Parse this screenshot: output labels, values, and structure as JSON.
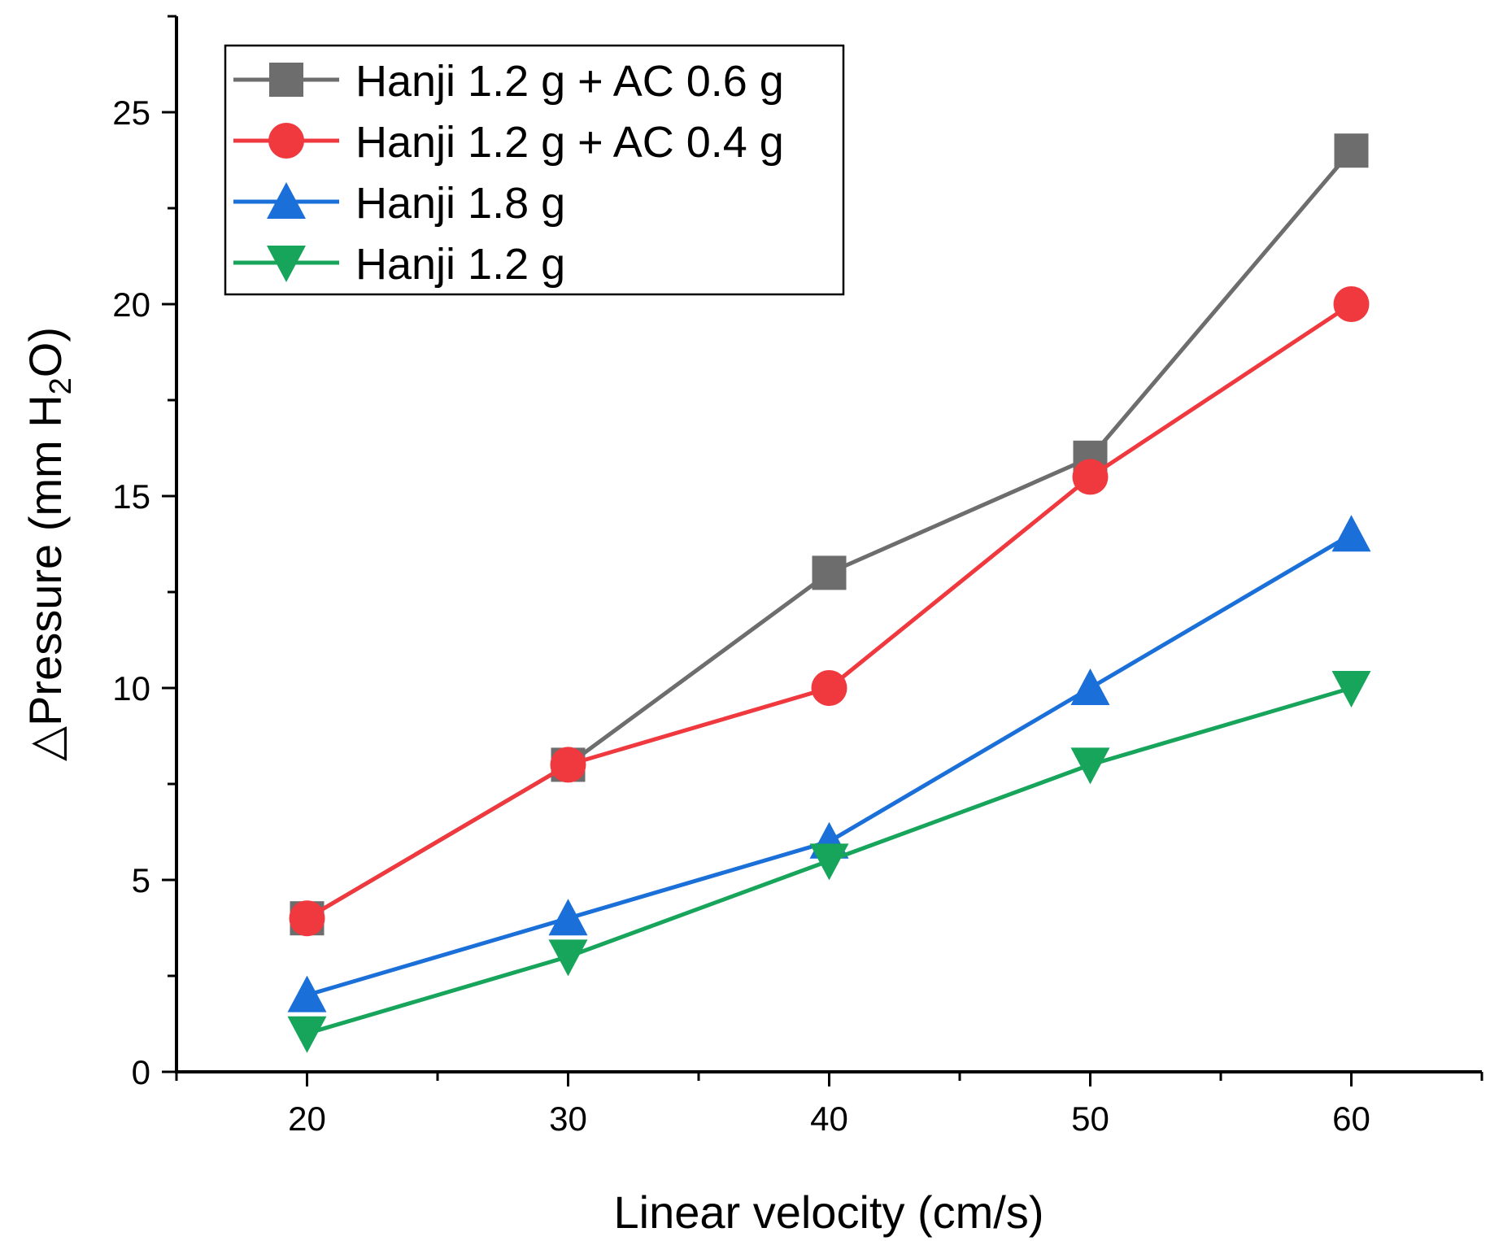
{
  "chart_data": {
    "type": "line",
    "title": "",
    "xlabel": "Linear velocity (cm/s)",
    "ylabel": {
      "prefix": "△Pressure (mm H",
      "subscript": "2",
      "suffix": "O)"
    },
    "xlim": [
      15,
      65
    ],
    "ylim": [
      0,
      27.5
    ],
    "xticks": [
      20,
      30,
      40,
      50,
      60
    ],
    "xtick_labels": [
      "20",
      "30",
      "40",
      "50",
      "60"
    ],
    "yticks": [
      0,
      5,
      10,
      15,
      20,
      25
    ],
    "ytick_labels": [
      "0",
      "5",
      "10",
      "15",
      "20",
      "25"
    ],
    "grid": false,
    "legend_position": "top-left",
    "x": [
      20,
      30,
      40,
      50,
      60
    ],
    "series": [
      {
        "name": "Hanji 1.2 g + AC 0.6 g",
        "color": "#6d6d6d",
        "marker": "square",
        "values": [
          4,
          8,
          13,
          16,
          24
        ]
      },
      {
        "name": "Hanji 1.2 g + AC 0.4 g",
        "color": "#f0393f",
        "marker": "circle",
        "values": [
          4,
          8,
          10,
          15.5,
          20
        ]
      },
      {
        "name": "Hanji 1.8 g",
        "color": "#1a6fd8",
        "marker": "triangle-up",
        "values": [
          2,
          4,
          6,
          10,
          14
        ]
      },
      {
        "name": "Hanji 1.2 g",
        "color": "#17a45b",
        "marker": "triangle-down",
        "values": [
          1,
          3,
          5.5,
          8,
          10
        ]
      }
    ]
  }
}
